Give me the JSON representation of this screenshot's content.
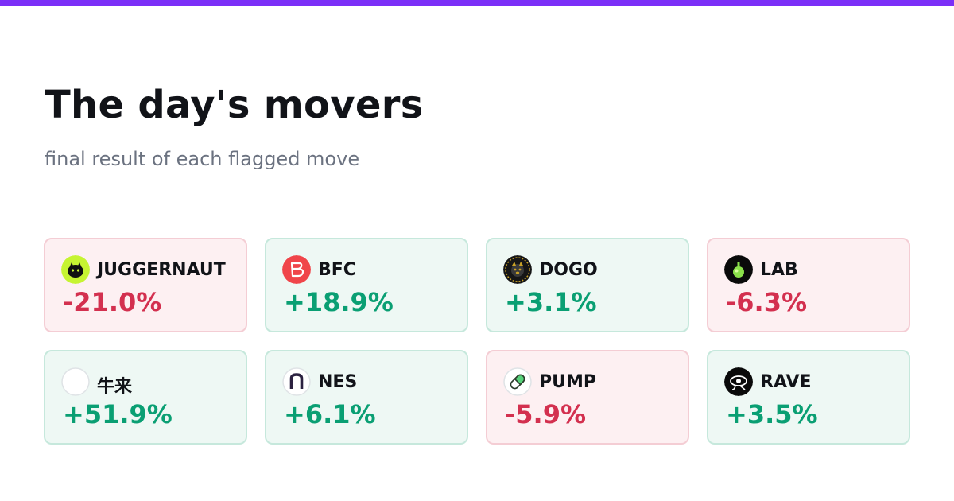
{
  "header": {
    "title": "The day's movers",
    "subtitle": "final result of each flagged move"
  },
  "colors": {
    "accent": "#7b2ff7",
    "negative": "#d3304f",
    "positive": "#0a9f73",
    "negative_bg": "#fdf0f2",
    "positive_bg": "#eef8f4"
  },
  "movers": [
    {
      "symbol": "JUGGERNAUT",
      "change": "-21.0%",
      "direction": "negative",
      "icon": "juggernaut-logo-icon"
    },
    {
      "symbol": "BFC",
      "change": "+18.9%",
      "direction": "positive",
      "icon": "bfc-logo-icon"
    },
    {
      "symbol": "DOGO",
      "change": "+3.1%",
      "direction": "positive",
      "icon": "dogo-logo-icon"
    },
    {
      "symbol": "LAB",
      "change": "-6.3%",
      "direction": "negative",
      "icon": "lab-logo-icon"
    },
    {
      "symbol": "牛来",
      "change": "+51.9%",
      "direction": "positive",
      "icon": "blank-logo-icon"
    },
    {
      "symbol": "NES",
      "change": "+6.1%",
      "direction": "positive",
      "icon": "nes-logo-icon"
    },
    {
      "symbol": "PUMP",
      "change": "-5.9%",
      "direction": "negative",
      "icon": "pill-logo-icon"
    },
    {
      "symbol": "RAVE",
      "change": "+3.5%",
      "direction": "positive",
      "icon": "rave-logo-icon"
    }
  ]
}
